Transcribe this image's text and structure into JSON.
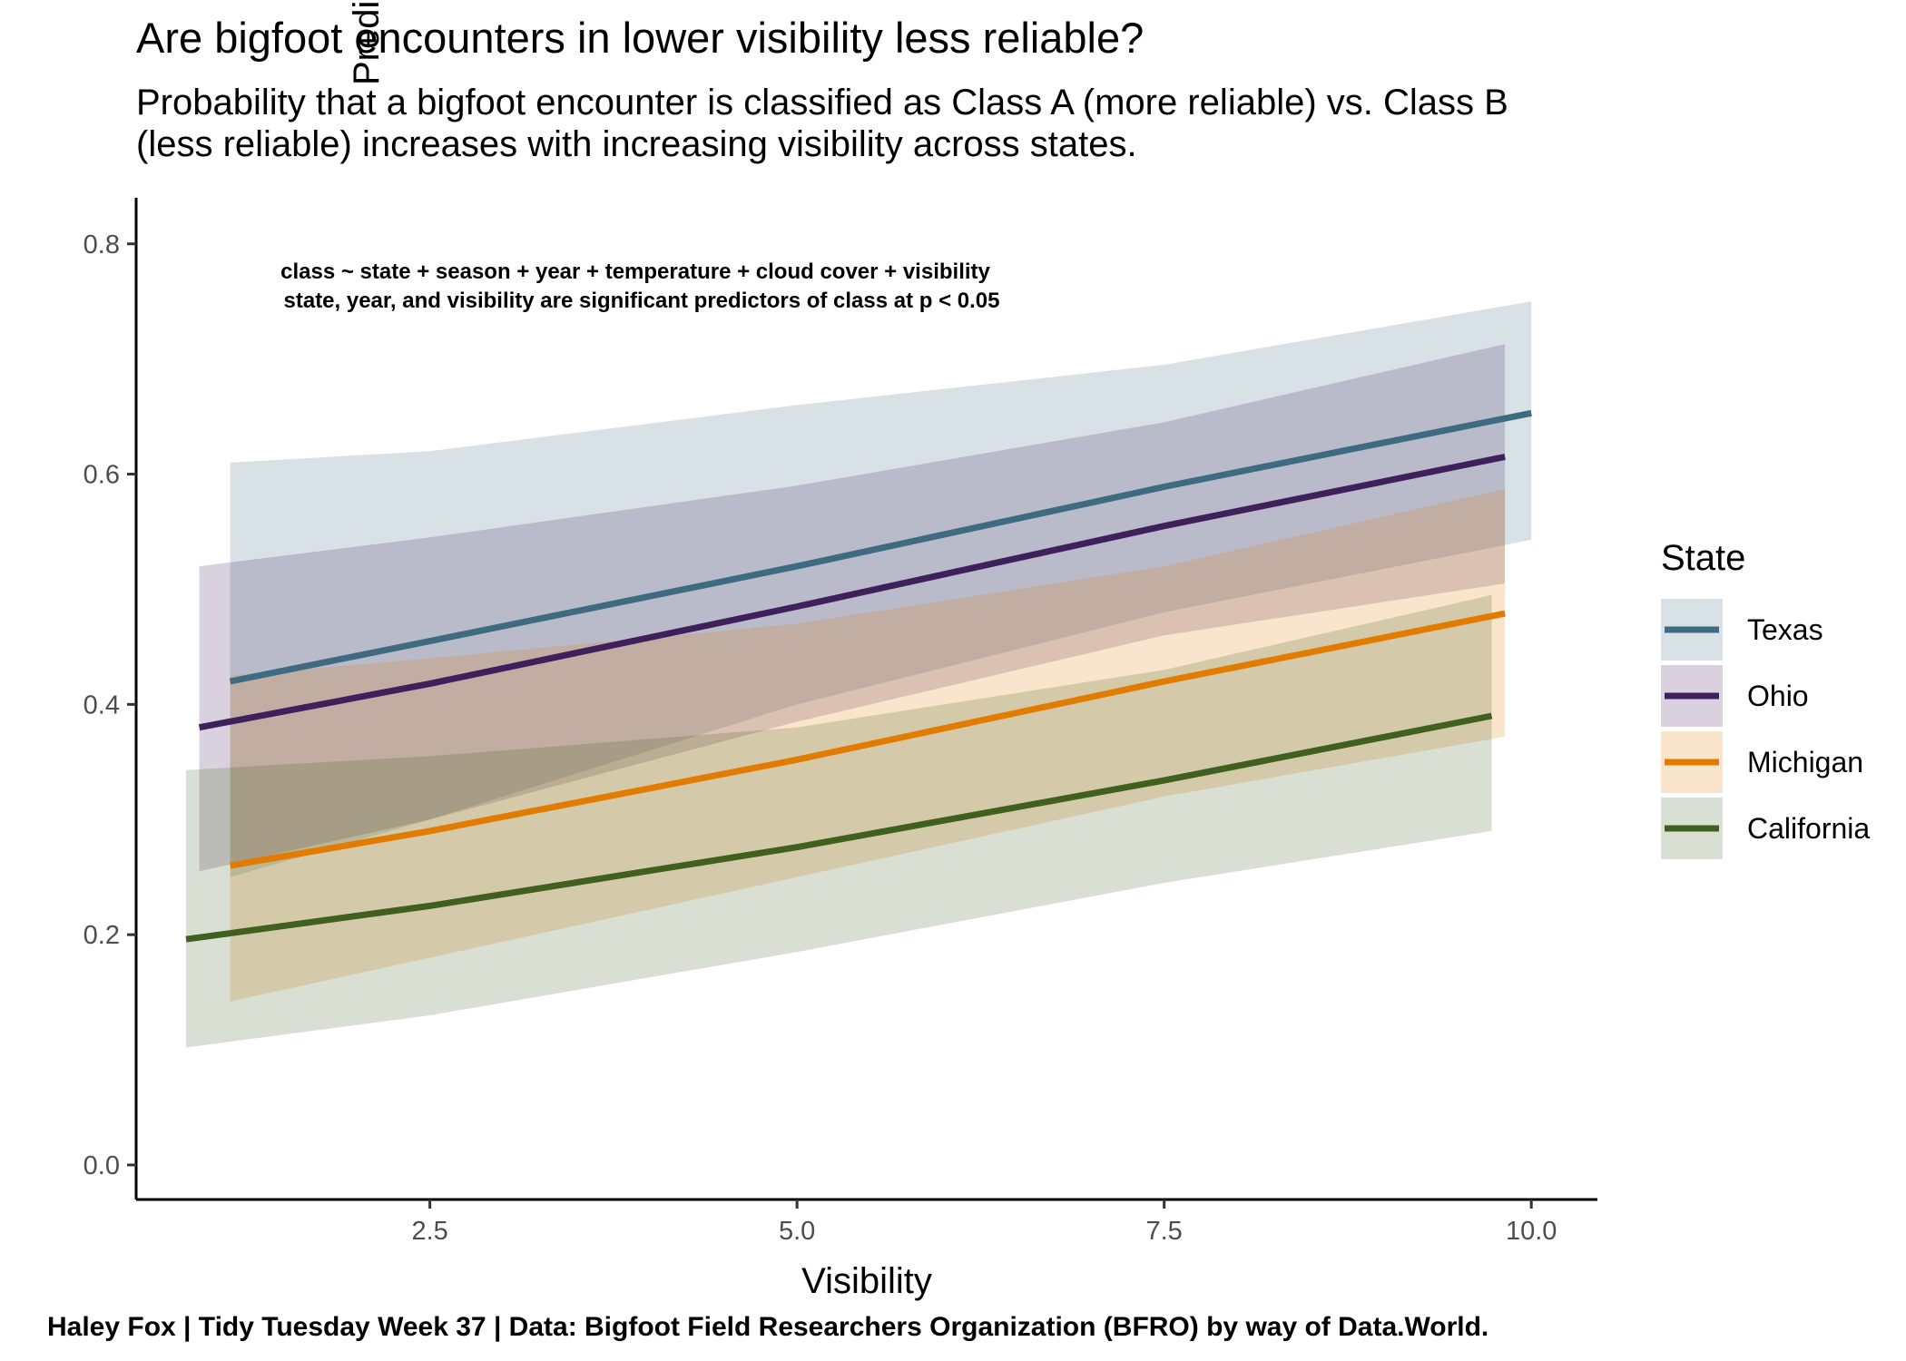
{
  "title": "Are bigfoot encounters in lower visibility less reliable?",
  "subtitle_lines": [
    "Probability that a bigfoot encounter is classified as Class A (more reliable) vs. Class B",
    "(less reliable) increases with increasing visibility across states."
  ],
  "caption": "Haley Fox | Tidy Tuesday Week 37 | Data: Bigfoot Field Researchers Organization (BFRO) by way of Data.World.",
  "annotation_lines": [
    "class ~ state + season + year + temperature + cloud cover + visibility",
    "state, year, and visibility are significant predictors of class at p < 0.05"
  ],
  "chart_data": {
    "type": "line",
    "xlabel": "Visibility",
    "ylabel": "Predicted probability Class A",
    "xlim": [
      0.5,
      10.45
    ],
    "ylim": [
      -0.03,
      0.84
    ],
    "x_ticks": [
      "2.5",
      "5.0",
      "7.5",
      "10.0"
    ],
    "x_tick_values": [
      2.5,
      5.0,
      7.5,
      10.0
    ],
    "y_ticks": [
      "0.0",
      "0.2",
      "0.4",
      "0.6",
      "0.8"
    ],
    "y_tick_values": [
      0.0,
      0.2,
      0.4,
      0.6,
      0.8
    ],
    "grid": false,
    "legend": {
      "title": "State",
      "position": "right"
    },
    "series": [
      {
        "name": "Texas",
        "color": "#3e6b82",
        "fill": "#d9e1e6",
        "x": [
          1.14,
          2.5,
          5.0,
          7.5,
          10.0
        ],
        "y": [
          0.42,
          0.455,
          0.52,
          0.589,
          0.653
        ],
        "lower": [
          0.25,
          0.3,
          0.4,
          0.48,
          0.543
        ],
        "upper": [
          0.61,
          0.62,
          0.66,
          0.695,
          0.75
        ]
      },
      {
        "name": "Ohio",
        "color": "#3f1f5c",
        "fill": "#bcb7cb",
        "x": [
          0.93,
          2.5,
          5.0,
          7.5,
          9.82
        ],
        "y": [
          0.38,
          0.418,
          0.485,
          0.555,
          0.615
        ],
        "lower": [
          0.255,
          0.3,
          0.385,
          0.46,
          0.505
        ],
        "upper": [
          0.52,
          0.545,
          0.59,
          0.645,
          0.713
        ]
      },
      {
        "name": "Michigan",
        "color": "#e27c00",
        "fill": "#f4dfc3",
        "x": [
          1.14,
          2.5,
          5.0,
          7.5,
          9.82
        ],
        "y": [
          0.26,
          0.29,
          0.352,
          0.42,
          0.479
        ],
        "lower": [
          0.142,
          0.18,
          0.25,
          0.32,
          0.372
        ],
        "upper": [
          0.425,
          0.44,
          0.47,
          0.52,
          0.587
        ]
      },
      {
        "name": "California",
        "color": "#406020",
        "fill": "#cfd6c6",
        "x": [
          0.84,
          2.5,
          5.0,
          7.5,
          9.73
        ],
        "y": [
          0.196,
          0.225,
          0.276,
          0.334,
          0.39
        ],
        "lower": [
          0.102,
          0.13,
          0.185,
          0.245,
          0.29
        ],
        "upper": [
          0.343,
          0.355,
          0.38,
          0.43,
          0.495
        ]
      }
    ]
  }
}
